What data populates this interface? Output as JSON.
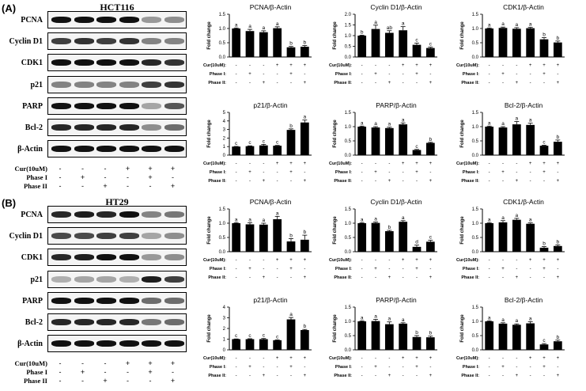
{
  "panels": [
    {
      "label": "(A)",
      "cell_line": "HCT116",
      "blot_rows": [
        "PCNA",
        "Cyclin D1",
        "CDK1",
        "p21",
        "PARP",
        "Bcl-2",
        "β-Actin"
      ],
      "treatments": [
        {
          "label": "Cur(10uM)",
          "signs": [
            "-",
            "-",
            "-",
            "+",
            "+",
            "+"
          ]
        },
        {
          "label": "Phase I",
          "signs": [
            "-",
            "+",
            "-",
            "-",
            "+",
            "-"
          ]
        },
        {
          "label": "Phase II",
          "signs": [
            "-",
            "-",
            "+",
            "-",
            "-",
            "+"
          ]
        }
      ]
    },
    {
      "label": "(B)",
      "cell_line": "HT29",
      "blot_rows": [
        "PCNA",
        "Cyclin D1",
        "CDK1",
        "p21",
        "PARP",
        "Bcl-2",
        "β-Actin"
      ],
      "treatments": [
        {
          "label": "Cur(10uM)",
          "signs": [
            "-",
            "-",
            "-",
            "+",
            "+",
            "+"
          ]
        },
        {
          "label": "Phase I",
          "signs": [
            "-",
            "+",
            "-",
            "-",
            "+",
            "-"
          ]
        },
        {
          "label": "Phase II",
          "signs": [
            "-",
            "-",
            "+",
            "-",
            "-",
            "+"
          ]
        }
      ]
    }
  ],
  "chart_axis_treatments": [
    {
      "label": "Cur(10uM)",
      "signs": [
        "-",
        "-",
        "-",
        "+",
        "+",
        "+"
      ]
    },
    {
      "label": "Phase I",
      "signs": [
        "-",
        "+",
        "-",
        "-",
        "+",
        "-"
      ]
    },
    {
      "label": "Phase II",
      "signs": [
        "-",
        "-",
        "+",
        "-",
        "-",
        "+"
      ]
    }
  ],
  "chart_data": [
    {
      "type": "bar",
      "panel": "A",
      "title": "PCNA/β-Actin",
      "ylabel": "Fold change",
      "ylim": [
        0,
        1.5
      ],
      "yticks": [
        0.0,
        0.5,
        1.0,
        1.5
      ],
      "values": [
        1.0,
        0.91,
        0.87,
        1.01,
        0.34,
        0.36
      ],
      "errors": [
        0.02,
        0.06,
        0.05,
        0.05,
        0.03,
        0.04
      ],
      "letters": [
        "a",
        "a",
        "a",
        "a",
        "b",
        "b"
      ]
    },
    {
      "type": "bar",
      "panel": "A",
      "title": "Cyclin D1/β-Actin",
      "ylabel": "Fold change",
      "ylim": [
        0,
        2.0
      ],
      "yticks": [
        0.0,
        0.5,
        1.0,
        1.5,
        2.0
      ],
      "values": [
        1.0,
        1.31,
        1.13,
        1.25,
        0.57,
        0.42
      ],
      "errors": [
        0.02,
        0.18,
        0.1,
        0.17,
        0.08,
        0.04
      ],
      "letters": [
        "b",
        "a",
        "ab",
        "a",
        "c",
        "c"
      ]
    },
    {
      "type": "bar",
      "panel": "A",
      "title": "CDK1/β-Actin",
      "ylabel": "Fold change",
      "ylim": [
        0,
        1.5
      ],
      "yticks": [
        0.0,
        0.5,
        1.0,
        1.5
      ],
      "values": [
        1.0,
        1.02,
        0.99,
        1.01,
        0.62,
        0.51
      ],
      "errors": [
        0.02,
        0.03,
        0.04,
        0.03,
        0.06,
        0.05
      ],
      "letters": [
        "a",
        "a",
        "a",
        "a",
        "b",
        "b"
      ]
    },
    {
      "type": "bar",
      "panel": "A",
      "title": "p21/β-Actin",
      "ylabel": "Fold change",
      "ylim": [
        0,
        5
      ],
      "yticks": [
        0,
        1,
        2,
        3,
        4,
        5
      ],
      "values": [
        1.0,
        1.05,
        1.14,
        1.1,
        2.95,
        3.82
      ],
      "errors": [
        0.02,
        0.04,
        0.12,
        0.04,
        0.12,
        0.28
      ],
      "letters": [
        "c",
        "c",
        "c",
        "c",
        "b",
        "a"
      ]
    },
    {
      "type": "bar",
      "panel": "A",
      "title": "PARP/β-Actin",
      "ylabel": "Fold change",
      "ylim": [
        0,
        1.5
      ],
      "yticks": [
        0.0,
        0.5,
        1.0,
        1.5
      ],
      "values": [
        1.0,
        0.97,
        0.95,
        1.08,
        0.18,
        0.43
      ],
      "errors": [
        0.02,
        0.03,
        0.03,
        0.05,
        0.02,
        0.02
      ],
      "letters": [
        "a",
        "a",
        "a",
        "a",
        "c",
        "b"
      ]
    },
    {
      "type": "bar",
      "panel": "A",
      "title": "Bcl-2/β-Actin",
      "ylabel": "Fold change",
      "ylim": [
        0,
        1.5
      ],
      "yticks": [
        0.0,
        0.5,
        1.0,
        1.5
      ],
      "values": [
        1.0,
        0.97,
        1.08,
        1.06,
        0.33,
        0.47
      ],
      "errors": [
        0.02,
        0.03,
        0.1,
        0.06,
        0.02,
        0.06
      ],
      "letters": [
        "a",
        "a",
        "a",
        "a",
        "c",
        "b"
      ]
    },
    {
      "type": "bar",
      "panel": "B",
      "title": "PCNA/β-Actin",
      "ylabel": "Fold change",
      "ylim": [
        0,
        1.5
      ],
      "yticks": [
        0.0,
        0.5,
        1.0,
        1.5
      ],
      "values": [
        1.0,
        0.96,
        0.95,
        1.14,
        0.36,
        0.42
      ],
      "errors": [
        0.02,
        0.06,
        0.05,
        0.1,
        0.1,
        0.16
      ],
      "letters": [
        "a",
        "a",
        "a",
        "a",
        "b",
        "b"
      ]
    },
    {
      "type": "bar",
      "panel": "B",
      "title": "Cyclin D1/β-Actin",
      "ylabel": "Fold change",
      "ylim": [
        0,
        1.5
      ],
      "yticks": [
        0.0,
        0.5,
        1.0,
        1.5
      ],
      "values": [
        1.0,
        1.01,
        0.72,
        1.05,
        0.17,
        0.35
      ],
      "errors": [
        0.02,
        0.03,
        0.03,
        0.04,
        0.06,
        0.05
      ],
      "letters": [
        "a",
        "a",
        "b",
        "a",
        "d",
        "c"
      ]
    },
    {
      "type": "bar",
      "panel": "B",
      "title": "CDK1/β-Actin",
      "ylabel": "Fold change",
      "ylim": [
        0,
        1.5
      ],
      "yticks": [
        0.0,
        0.5,
        1.0,
        1.5
      ],
      "values": [
        1.0,
        1.03,
        1.12,
        0.98,
        0.14,
        0.2
      ],
      "errors": [
        0.02,
        0.06,
        0.05,
        0.03,
        0.04,
        0.04
      ],
      "letters": [
        "a",
        "a",
        "a",
        "a",
        "b",
        "b"
      ]
    },
    {
      "type": "bar",
      "panel": "B",
      "title": "p21/β-Actin",
      "ylabel": "Fold change",
      "ylim": [
        0,
        4
      ],
      "yticks": [
        0,
        1,
        2,
        3,
        4
      ],
      "values": [
        1.0,
        1.0,
        1.0,
        0.9,
        2.85,
        1.85
      ],
      "errors": [
        0.02,
        0.04,
        0.06,
        0.04,
        0.18,
        0.06
      ],
      "letters": [
        "c",
        "c",
        "c",
        "c",
        "a",
        "b"
      ]
    },
    {
      "type": "bar",
      "panel": "B",
      "title": "PARP/β-Actin",
      "ylabel": "Fold change",
      "ylim": [
        0,
        1.5
      ],
      "yticks": [
        0.0,
        0.5,
        1.0,
        1.5
      ],
      "values": [
        1.0,
        1.01,
        0.9,
        0.92,
        0.45,
        0.44
      ],
      "errors": [
        0.02,
        0.06,
        0.08,
        0.03,
        0.05,
        0.04
      ],
      "letters": [
        "a",
        "a",
        "a",
        "a",
        "b",
        "b"
      ]
    },
    {
      "type": "bar",
      "panel": "B",
      "title": "Bcl-2/β-Actin",
      "ylabel": "Fold change",
      "ylim": [
        0,
        1.5
      ],
      "yticks": [
        0.0,
        0.5,
        1.0,
        1.5
      ],
      "values": [
        1.0,
        0.92,
        0.88,
        0.93,
        0.19,
        0.3
      ],
      "errors": [
        0.02,
        0.03,
        0.03,
        0.06,
        0.03,
        0.04
      ],
      "letters": [
        "a",
        "a",
        "a",
        "a",
        "c",
        "b"
      ]
    }
  ]
}
